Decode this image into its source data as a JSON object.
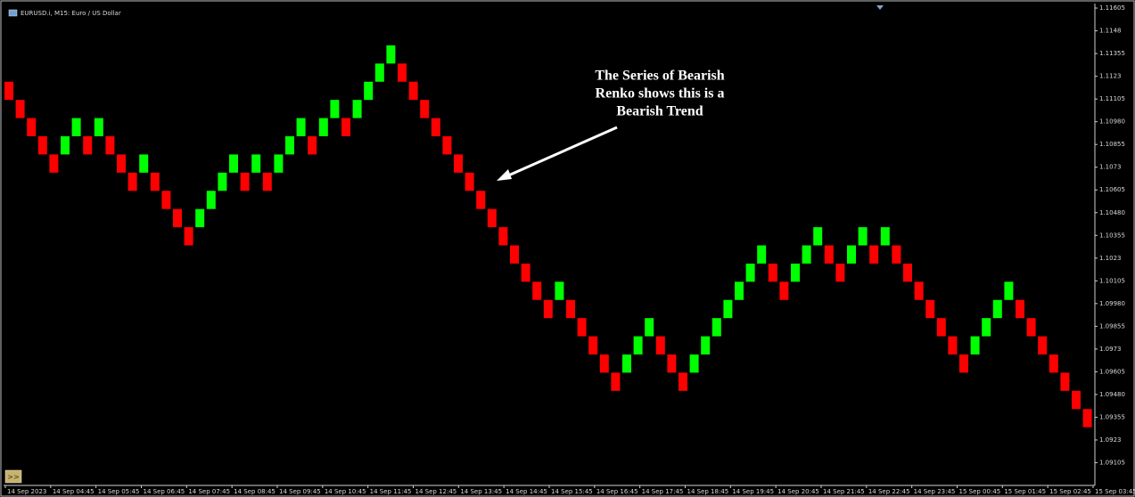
{
  "chart_data": {
    "type": "renko",
    "instrument_label": "EURUSD.i, M15:  Euro / US Dollar",
    "annotation": [
      "The Series of Bearish",
      "Renko shows this is a",
      "Bearish Trend"
    ],
    "scroll_button": ">>",
    "up_color": "#00ff00",
    "down_color": "#ff0000",
    "open": [
      1.112,
      1.111,
      1.11,
      1.109,
      1.108,
      1.108,
      1.109,
      1.109,
      1.109,
      1.109,
      1.108,
      1.107,
      1.107,
      1.107,
      1.106,
      1.105,
      1.104,
      1.104,
      1.105,
      1.106,
      1.107,
      1.107,
      1.107,
      1.107,
      1.107,
      1.108,
      1.109,
      1.109,
      1.109,
      1.11,
      1.11,
      1.11,
      1.111,
      1.112,
      1.113,
      1.113,
      1.112,
      1.111,
      1.11,
      1.109,
      1.108,
      1.107,
      1.106,
      1.105,
      1.104,
      1.103,
      1.102,
      1.101,
      1.1,
      1.1,
      1.1,
      1.099,
      1.098,
      1.097,
      1.096,
      1.096,
      1.097,
      1.098,
      1.098,
      1.097,
      1.096,
      1.096,
      1.097,
      1.098,
      1.099,
      1.1,
      1.101,
      1.102,
      1.102,
      1.101,
      1.101,
      1.102,
      1.103,
      1.103,
      1.102,
      1.102,
      1.103,
      1.103,
      1.103,
      1.103,
      1.102,
      1.101,
      1.1,
      1.099,
      1.098,
      1.097,
      1.097,
      1.098,
      1.099,
      1.1,
      1.1,
      1.099,
      1.098,
      1.097,
      1.096,
      1.095,
      1.094
    ],
    "close": [
      1.111,
      1.11,
      1.109,
      1.108,
      1.107,
      1.109,
      1.11,
      1.108,
      1.11,
      1.108,
      1.107,
      1.106,
      1.108,
      1.106,
      1.105,
      1.104,
      1.103,
      1.105,
      1.106,
      1.107,
      1.108,
      1.106,
      1.108,
      1.106,
      1.108,
      1.109,
      1.11,
      1.108,
      1.11,
      1.111,
      1.109,
      1.111,
      1.112,
      1.113,
      1.114,
      1.112,
      1.111,
      1.11,
      1.109,
      1.108,
      1.107,
      1.106,
      1.105,
      1.104,
      1.103,
      1.102,
      1.101,
      1.1,
      1.099,
      1.101,
      1.099,
      1.098,
      1.097,
      1.096,
      1.095,
      1.097,
      1.098,
      1.099,
      1.097,
      1.096,
      1.095,
      1.097,
      1.098,
      1.099,
      1.1,
      1.101,
      1.102,
      1.103,
      1.101,
      1.1,
      1.102,
      1.103,
      1.104,
      1.102,
      1.101,
      1.103,
      1.104,
      1.102,
      1.104,
      1.102,
      1.101,
      1.1,
      1.099,
      1.098,
      1.097,
      1.096,
      1.098,
      1.099,
      1.1,
      1.101,
      1.099,
      1.098,
      1.097,
      1.096,
      1.095,
      1.094,
      1.093
    ],
    "ylim": [
      1.0898,
      1.1162
    ],
    "yticks": [
      1.11605,
      1.1148,
      1.11355,
      1.1123,
      1.11105,
      {
        "value": 1.1098,
        "label": "1.10980"
      },
      1.10855,
      1.1073,
      1.10605,
      {
        "value": 1.1048,
        "label": "1.10480"
      },
      1.10355,
      1.1023,
      1.10105,
      {
        "value": 1.0998,
        "label": "1.09980"
      },
      1.09855,
      1.0973,
      1.09605,
      {
        "value": 1.0948,
        "label": "1.09480"
      },
      1.09355,
      1.0923,
      1.09105
    ],
    "x_labels": [
      "14 Sep 2023",
      "14 Sep 04:45",
      "14 Sep 05:45",
      "14 Sep 06:45",
      "14 Sep 07:45",
      "14 Sep 08:45",
      "14 Sep 09:45",
      "14 Sep 10:45",
      "14 Sep 11:45",
      "14 Sep 12:45",
      "14 Sep 13:45",
      "14 Sep 14:45",
      "14 Sep 15:45",
      "14 Sep 16:45",
      "14 Sep 17:45",
      "14 Sep 18:45",
      "14 Sep 19:45",
      "14 Sep 20:45",
      "14 Sep 21:45",
      "14 Sep 22:45",
      "14 Sep 23:45",
      "15 Sep 00:45",
      "15 Sep 01:45",
      "15 Sep 02:45",
      "15 Sep 03:45"
    ]
  }
}
